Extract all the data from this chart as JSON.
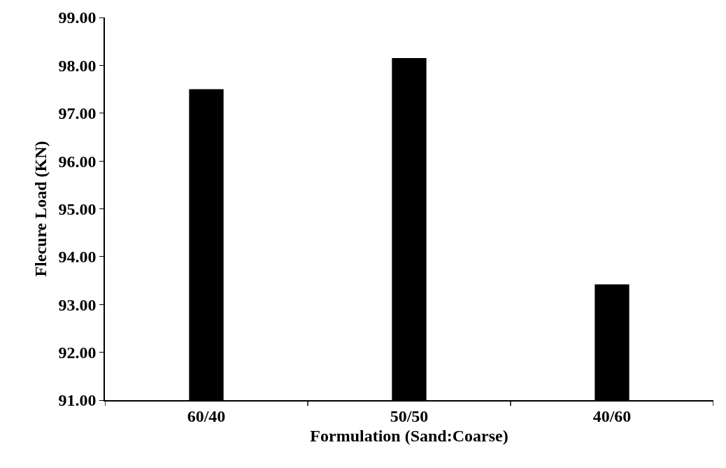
{
  "chart_data": {
    "type": "bar",
    "xlabel": "Formulation (Sand:Coarse)",
    "ylabel": "Flecure Load (KN)",
    "categories": [
      "60/40",
      "50/50",
      "40/60"
    ],
    "values": [
      97.5,
      98.15,
      93.42
    ],
    "color": "#000000",
    "ylim": [
      91,
      99
    ],
    "yticks": [
      {
        "value": 91,
        "label": "91.00"
      },
      {
        "value": 92,
        "label": "92.00"
      },
      {
        "value": 93,
        "label": "93.00"
      },
      {
        "value": 94,
        "label": "94.00"
      },
      {
        "value": 95,
        "label": "95.00"
      },
      {
        "value": 96,
        "label": "96.00"
      },
      {
        "value": 97,
        "label": "97.00"
      },
      {
        "value": 98,
        "label": "98.00"
      },
      {
        "value": 99,
        "label": "99.00"
      }
    ],
    "legend": false
  }
}
